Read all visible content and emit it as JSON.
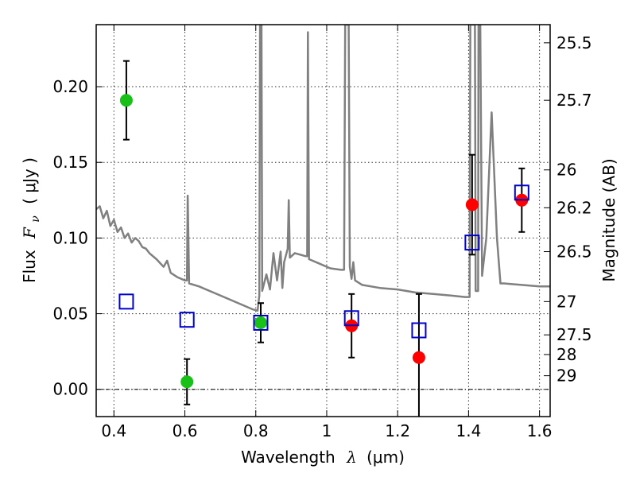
{
  "chart_data": {
    "type": "scatter",
    "xlabel": {
      "text": "Wavelength",
      "symbol": "λ",
      "unit": "(μm)"
    },
    "ylabel": {
      "text": "Flux",
      "symbol": "F",
      "subscript": "ν",
      "unit": "( μJy )"
    },
    "y2label": "Magnitude (AB)",
    "xlim": [
      0.35,
      1.63
    ],
    "ylim": [
      -0.018,
      0.241
    ],
    "x_ticks": [
      0.4,
      0.6,
      0.8,
      1.0,
      1.2,
      1.4,
      1.6
    ],
    "x_tick_labels": [
      "0.4",
      "0.6",
      "0.8",
      "1",
      "1.2",
      "1.4",
      "1.6"
    ],
    "y_ticks": [
      0.0,
      0.05,
      0.1,
      0.15,
      0.2
    ],
    "y_tick_labels": [
      "0.00",
      "0.05",
      "0.10",
      "0.15",
      "0.20"
    ],
    "magnitude_ticks": [
      {
        "label": "25.5",
        "flux": 0.229
      },
      {
        "label": "25.7",
        "flux": 0.191
      },
      {
        "label": "26",
        "flux": 0.145
      },
      {
        "label": "26.2",
        "flux": 0.12
      },
      {
        "label": "26.5",
        "flux": 0.091
      },
      {
        "label": "27",
        "flux": 0.058
      },
      {
        "label": "27.5",
        "flux": 0.036
      },
      {
        "label": "28",
        "flux": 0.023
      },
      {
        "label": "29",
        "flux": 0.009
      }
    ],
    "grid": true,
    "zero_line": true,
    "colors": {
      "model": "#808080",
      "green": "#18c018",
      "red": "#ff0000",
      "blue": "#0000cc",
      "errorbar": "#000000"
    },
    "series": [
      {
        "marker": "circle",
        "color": "#18c018",
        "points": [
          {
            "x": 0.435,
            "y": 0.191,
            "yerr": 0.026
          },
          {
            "x": 0.606,
            "y": 0.005,
            "yerr": 0.015
          },
          {
            "x": 0.814,
            "y": 0.044,
            "yerr": 0.013
          }
        ]
      },
      {
        "marker": "circle",
        "color": "#ff0000",
        "points": [
          {
            "x": 1.07,
            "y": 0.042,
            "yerr": 0.021
          },
          {
            "x": 1.26,
            "y": 0.021,
            "yerr": 0.042
          },
          {
            "x": 1.41,
            "y": 0.122,
            "yerr": 0.033
          },
          {
            "x": 1.55,
            "y": 0.125,
            "yerr": 0.021
          }
        ]
      },
      {
        "marker": "square-open",
        "color": "#0000cc",
        "points": [
          {
            "x": 0.435,
            "y": 0.058
          },
          {
            "x": 0.606,
            "y": 0.046
          },
          {
            "x": 0.814,
            "y": 0.044
          },
          {
            "x": 1.07,
            "y": 0.047
          },
          {
            "x": 1.26,
            "y": 0.039
          },
          {
            "x": 1.41,
            "y": 0.097
          },
          {
            "x": 1.55,
            "y": 0.13
          }
        ]
      }
    ],
    "model_spectrum": {
      "color": "#808080",
      "points": [
        [
          0.35,
          0.119
        ],
        [
          0.36,
          0.121
        ],
        [
          0.37,
          0.113
        ],
        [
          0.38,
          0.118
        ],
        [
          0.39,
          0.108
        ],
        [
          0.4,
          0.112
        ],
        [
          0.41,
          0.104
        ],
        [
          0.42,
          0.107
        ],
        [
          0.43,
          0.1
        ],
        [
          0.44,
          0.103
        ],
        [
          0.45,
          0.097
        ],
        [
          0.46,
          0.1
        ],
        [
          0.47,
          0.098
        ],
        [
          0.48,
          0.094
        ],
        [
          0.49,
          0.093
        ],
        [
          0.5,
          0.09
        ],
        [
          0.52,
          0.086
        ],
        [
          0.54,
          0.081
        ],
        [
          0.55,
          0.085
        ],
        [
          0.56,
          0.077
        ],
        [
          0.58,
          0.074
        ],
        [
          0.6,
          0.072
        ],
        [
          0.606,
          0.072
        ],
        [
          0.608,
          0.128
        ],
        [
          0.612,
          0.07
        ],
        [
          0.64,
          0.068
        ],
        [
          0.68,
          0.064
        ],
        [
          0.72,
          0.06
        ],
        [
          0.76,
          0.056
        ],
        [
          0.79,
          0.053
        ],
        [
          0.805,
          0.052
        ],
        [
          0.81,
          0.062
        ],
        [
          0.812,
          0.241
        ],
        [
          0.816,
          0.241
        ],
        [
          0.818,
          0.065
        ],
        [
          0.83,
          0.076
        ],
        [
          0.84,
          0.066
        ],
        [
          0.85,
          0.09
        ],
        [
          0.86,
          0.072
        ],
        [
          0.87,
          0.091
        ],
        [
          0.875,
          0.067
        ],
        [
          0.88,
          0.084
        ],
        [
          0.89,
          0.093
        ],
        [
          0.893,
          0.125
        ],
        [
          0.896,
          0.087
        ],
        [
          0.91,
          0.09
        ],
        [
          0.94,
          0.088
        ],
        [
          0.945,
          0.088
        ],
        [
          0.947,
          0.236
        ],
        [
          0.95,
          0.086
        ],
        [
          0.98,
          0.083
        ],
        [
          1.01,
          0.08
        ],
        [
          1.04,
          0.079
        ],
        [
          1.049,
          0.079
        ],
        [
          1.052,
          0.241
        ],
        [
          1.062,
          0.241
        ],
        [
          1.065,
          0.081
        ],
        [
          1.07,
          0.073
        ],
        [
          1.075,
          0.084
        ],
        [
          1.08,
          0.072
        ],
        [
          1.1,
          0.069
        ],
        [
          1.15,
          0.067
        ],
        [
          1.2,
          0.066
        ],
        [
          1.25,
          0.064
        ],
        [
          1.3,
          0.063
        ],
        [
          1.35,
          0.062
        ],
        [
          1.39,
          0.061
        ],
        [
          1.403,
          0.061
        ],
        [
          1.405,
          0.241
        ],
        [
          1.418,
          0.241
        ],
        [
          1.42,
          0.065
        ],
        [
          1.427,
          0.065
        ],
        [
          1.428,
          0.241
        ],
        [
          1.433,
          0.241
        ],
        [
          1.438,
          0.075
        ],
        [
          1.45,
          0.1
        ],
        [
          1.465,
          0.183
        ],
        [
          1.48,
          0.1
        ],
        [
          1.49,
          0.07
        ],
        [
          1.5,
          0.07
        ],
        [
          1.55,
          0.069
        ],
        [
          1.6,
          0.068
        ],
        [
          1.63,
          0.068
        ]
      ]
    }
  }
}
